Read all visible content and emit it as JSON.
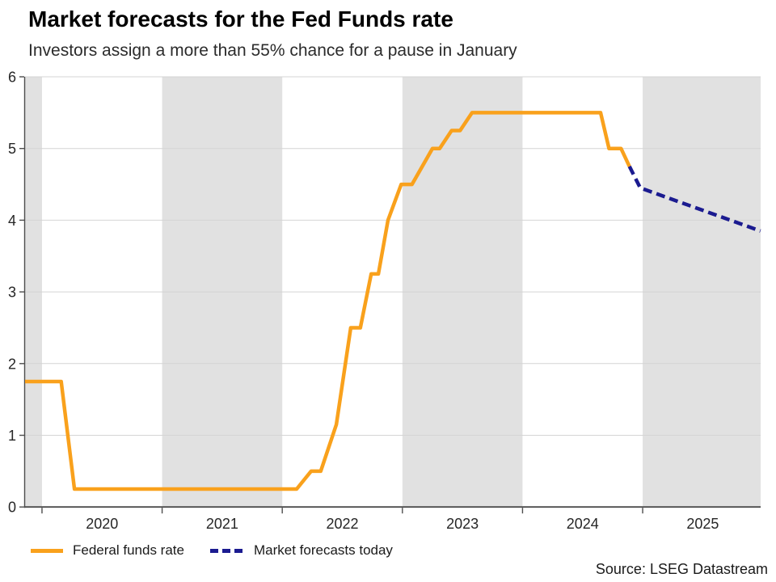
{
  "header": {
    "title": "Market forecasts for the Fed Funds rate",
    "subtitle": "Investors assign a more than 55% chance for a pause in January"
  },
  "legend": [
    {
      "label": "Federal funds rate",
      "color": "#F9A11C",
      "style": "solid"
    },
    {
      "label": "Market forecasts today",
      "color": "#1B1B90",
      "style": "dashed"
    }
  ],
  "footer": {
    "source": "Source: LSEG Datastream"
  },
  "colors": {
    "federal_funds_line": "#F9A11C",
    "forecast_line": "#1B1B90",
    "shaded_band": "#E1E1E1",
    "gridline": "#D4D4D4",
    "axis": "#4d4d4d",
    "tick_text": "#262626"
  },
  "chart_data": {
    "type": "line",
    "title": "Market forecasts for the Fed Funds rate",
    "xlabel": "",
    "ylabel": "",
    "ylim": [
      0,
      6
    ],
    "xlim": [
      2019.859,
      2025.982
    ],
    "y_ticks": [
      0,
      1,
      2,
      3,
      4,
      5,
      6
    ],
    "x_ticks": [
      2020,
      2021,
      2022,
      2023,
      2024,
      2025
    ],
    "x_tick_labels": [
      "2020",
      "2021",
      "2022",
      "2023",
      "2024",
      "2025"
    ],
    "grid": "horizontal",
    "legend_position": "bottom",
    "shaded_bands": [
      [
        2019.859,
        2020.0
      ],
      [
        2021.0,
        2022.0
      ],
      [
        2023.0,
        2024.0
      ],
      [
        2025.0,
        2025.982
      ]
    ],
    "series": [
      {
        "name": "Federal funds rate",
        "style": "solid",
        "color": "#F9A11C",
        "points": [
          [
            2019.859,
            1.75
          ],
          [
            2020.16,
            1.75
          ],
          [
            2020.27,
            0.25
          ],
          [
            2022.12,
            0.25
          ],
          [
            2022.24,
            0.5
          ],
          [
            2022.32,
            0.5
          ],
          [
            2022.45,
            1.15
          ],
          [
            2022.57,
            2.5
          ],
          [
            2022.65,
            2.5
          ],
          [
            2022.74,
            3.25
          ],
          [
            2022.8,
            3.25
          ],
          [
            2022.88,
            4.0
          ],
          [
            2022.99,
            4.5
          ],
          [
            2023.08,
            4.5
          ],
          [
            2023.25,
            5.0
          ],
          [
            2023.31,
            5.0
          ],
          [
            2023.41,
            5.25
          ],
          [
            2023.48,
            5.25
          ],
          [
            2023.58,
            5.5
          ],
          [
            2024.65,
            5.5
          ],
          [
            2024.72,
            5.0
          ],
          [
            2024.82,
            5.0
          ],
          [
            2024.89,
            4.75
          ]
        ]
      },
      {
        "name": "Market forecasts today",
        "style": "dashed",
        "color": "#1B1B90",
        "points": [
          [
            2024.89,
            4.75
          ],
          [
            2024.98,
            4.45
          ],
          [
            2025.98,
            3.85
          ]
        ]
      }
    ]
  }
}
